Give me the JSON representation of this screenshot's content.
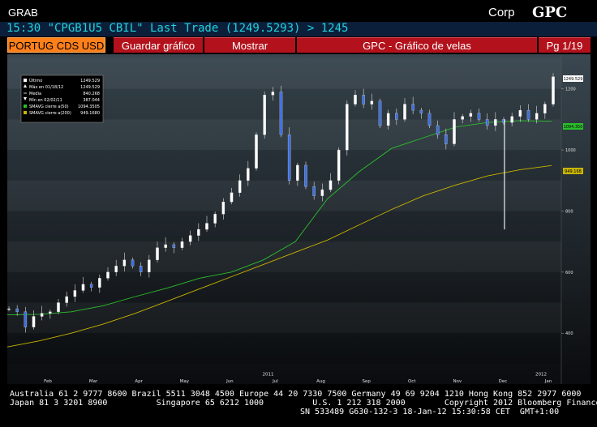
{
  "header": {
    "grab": "GRAB",
    "corp": "Corp",
    "gpc": "GPC",
    "ticker_line": "15:30 \"CPGB1U5 CBIL\" Last Trade (1249.5293) > 1245"
  },
  "tabs": {
    "security": "PORTUG CDS USD",
    "save": "Guardar gráfico",
    "show": "Mostrar",
    "title": "GPC - Gráfico de velas",
    "page": "Pg 1/19"
  },
  "colors": {
    "accent_orange": "#ff7f1a",
    "tab_red": "#b3121c",
    "ma50_green": "#2bbf2b",
    "ma200_yellow": "#c8b400",
    "candle_white": "#ffffff",
    "candle_blue": "#3d6fe0",
    "ticker_cyan": "#1fd3e0"
  },
  "legend": {
    "rows": [
      {
        "label": "Último",
        "value": "1249.529",
        "marker": "white-square"
      },
      {
        "label": "Máx en 01/18/12",
        "value": "1249.529",
        "marker": "up-marker"
      },
      {
        "label": "Media",
        "value": "840.268",
        "marker": "dash"
      },
      {
        "label": "Mín en 02/02/11",
        "value": "387.044",
        "marker": "down-marker"
      },
      {
        "label": "SMAVG cierre a(50)",
        "value": "1094.3505",
        "marker": "green-square"
      },
      {
        "label": "SMAVG cierre a(200)",
        "value": "949.1680",
        "marker": "yellow-square"
      }
    ]
  },
  "chart_data": {
    "type": "candlestick",
    "title": "",
    "y_ticks": [
      "1200",
      "1000",
      "800",
      "600",
      "400"
    ],
    "x_ticks": [
      "Feb",
      "Mar",
      "Apr",
      "May",
      "Jun",
      "Jul",
      "Aug",
      "Sep",
      "Oct",
      "Nov",
      "Dec",
      "Jan"
    ],
    "year_ticks": [
      {
        "label": "2011",
        "under": "Jul"
      },
      {
        "label": "2012",
        "under": "Jan"
      }
    ],
    "ylim": [
      260,
      1300
    ],
    "last_value_labels": {
      "last": "1249.529",
      "ma50": "1094.350",
      "ma200": "949.168"
    },
    "series": [
      {
        "name": "SMAVG cierre a(50)",
        "values": [
          460,
          462,
          470,
          490,
          520,
          548,
          580,
          600,
          640,
          700,
          840,
          930,
          1005,
          1040,
          1075,
          1090,
          1096,
          1094
        ]
      },
      {
        "name": "SMAVG cierre a(200)",
        "values": [
          355,
          375,
          400,
          430,
          465,
          505,
          545,
          585,
          625,
          665,
          705,
          755,
          805,
          850,
          885,
          915,
          935,
          949
        ]
      }
    ],
    "ohlc_closes": [
      480,
      470,
      420,
      455,
      465,
      470,
      500,
      520,
      540,
      560,
      550,
      580,
      600,
      620,
      640,
      620,
      600,
      640,
      680,
      690,
      680,
      700,
      720,
      740,
      760,
      790,
      830,
      860,
      900,
      940,
      1050,
      1180,
      1190,
      1050,
      900,
      950,
      880,
      850,
      870,
      900,
      1000,
      1150,
      1180,
      1150,
      1160,
      1080,
      1120,
      1100,
      1150,
      1130,
      1120,
      1080,
      1050,
      1020,
      1100,
      1110,
      1120,
      1100,
      1080,
      1100,
      1090,
      1110,
      1130,
      1100,
      1120,
      1150,
      1240
    ]
  },
  "footer": {
    "line1": "Australia 61 2 9777 8600 Brazil 5511 3048 4500 Europe 44 20 7330 7500 Germany 49 69 9204 1210 Hong Kong 852 2977 6000",
    "line2": "Japan 81 3 3201 8900          Singapore 65 6212 1000          U.S. 1 212 318 2000        Copyright 2012 Bloomberg Finance L.P.",
    "line3": "SN 533489 G630-132-3 18-Jan-12 15:30:58 CET  GMT+1:00"
  }
}
